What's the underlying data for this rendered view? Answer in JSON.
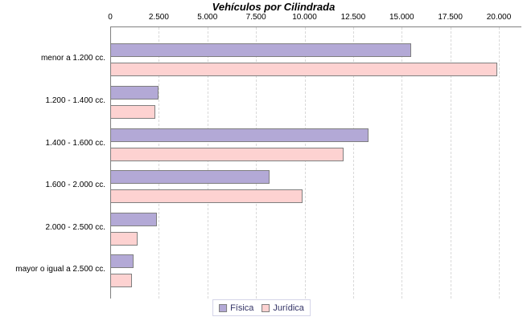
{
  "page": {
    "title": "Vehículos por Cilindrada"
  },
  "colors": {
    "fisica_fill": "#b3a9d6",
    "juridica_fill": "#fdd2d1",
    "bar_border": "#7f7f7f",
    "axis_line": "#808080",
    "gridline": "#d9d9d9",
    "legend_text": "#333366",
    "text": "#000000"
  },
  "legend": {
    "items": [
      {
        "label": "Física",
        "color": "#b3a9d6"
      },
      {
        "label": "Jurídica",
        "color": "#fdd2d1"
      }
    ],
    "position": "bottom"
  },
  "chart_data": {
    "type": "bar",
    "orientation": "horizontal",
    "title": "Vehículos por Cilindrada",
    "categories": [
      "menor a 1.200 cc.",
      "1.200 - 1.400 cc.",
      "1.400 - 1.600 cc.",
      "1.600 - 2.000 cc.",
      "2.000 - 2.500 cc.",
      "mayor o igual a 2.500 cc."
    ],
    "series": [
      {
        "name": "Física",
        "values": [
          15500,
          2500,
          13300,
          8200,
          2400,
          1200
        ]
      },
      {
        "name": "Jurídica",
        "values": [
          19900,
          2300,
          12000,
          9900,
          1400,
          1100
        ]
      }
    ],
    "xlim": [
      0,
      20000
    ],
    "x_ticks": [
      0,
      2500,
      5000,
      7500,
      10000,
      12500,
      15000,
      17500,
      20000
    ],
    "x_tick_labels": [
      "0",
      "2.500",
      "5.000",
      "7.500",
      "10.000",
      "12.500",
      "15.000",
      "17.500",
      "20.000"
    ],
    "axis_position": "top",
    "grid": true,
    "legend_position": "bottom"
  }
}
